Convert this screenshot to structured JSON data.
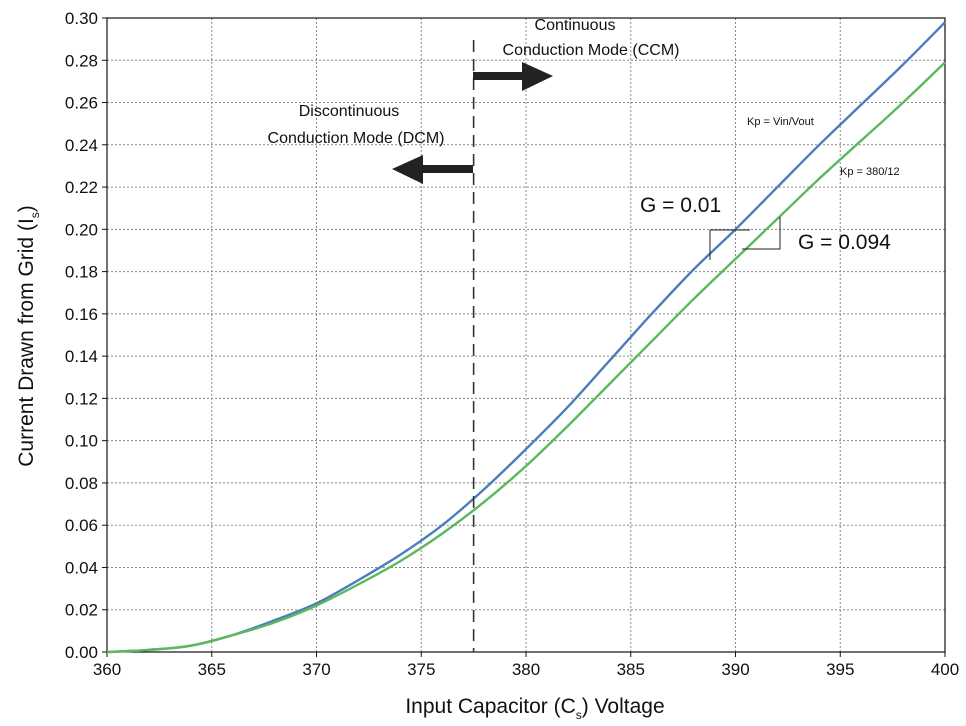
{
  "chart_data": {
    "type": "line",
    "title": "",
    "xlabel": "Input Capacitor (C_s) Voltage",
    "xlabel_parts": {
      "pre": "Input Capacitor (C",
      "sub": "s",
      "post": ") Voltage"
    },
    "ylabel": "Current Drawn from Grid (I_s)",
    "ylabel_parts": {
      "pre": "Current Drawn from Grid (I",
      "sub": "s",
      "post": ")"
    },
    "xlim": [
      360,
      400
    ],
    "ylim": [
      0,
      0.3
    ],
    "grid": true,
    "x_ticks": [
      "360",
      "365",
      "370",
      "375",
      "380",
      "385",
      "390",
      "395",
      "400"
    ],
    "y_ticks": [
      "0.00",
      "0.02",
      "0.04",
      "0.06",
      "0.08",
      "0.10",
      "0.12",
      "0.14",
      "0.16",
      "0.18",
      "0.20",
      "0.22",
      "0.24",
      "0.26",
      "0.28",
      "0.30"
    ],
    "series": [
      {
        "name": "Kp = Vin/Vout",
        "color": "#4a7ebb",
        "x": [
          360,
          362,
          364,
          366,
          368,
          370,
          372,
          374,
          376,
          378,
          380,
          382,
          384,
          386,
          388,
          390,
          392,
          394,
          396,
          398,
          400
        ],
        "y": [
          0.0,
          0.001,
          0.003,
          0.008,
          0.015,
          0.023,
          0.034,
          0.046,
          0.06,
          0.077,
          0.096,
          0.116,
          0.138,
          0.16,
          0.181,
          0.2,
          0.22,
          0.24,
          0.259,
          0.278,
          0.298
        ]
      },
      {
        "name": "Kp = 380/12",
        "color": "#5cb85c",
        "x": [
          360,
          362,
          364,
          366,
          368,
          370,
          372,
          374,
          376,
          378,
          380,
          382,
          384,
          386,
          388,
          390,
          392,
          394,
          396,
          398,
          400
        ],
        "y": [
          0.0,
          0.001,
          0.003,
          0.008,
          0.014,
          0.022,
          0.032,
          0.043,
          0.056,
          0.071,
          0.088,
          0.107,
          0.127,
          0.147,
          0.167,
          0.186,
          0.205,
          0.224,
          0.242,
          0.26,
          0.279
        ]
      }
    ],
    "boundary_x": 377.5,
    "annotations": {
      "ccm_line1": "Continuous",
      "ccm_line2": "Conduction Mode (CCM)",
      "dcm_line1": "Discontinuous",
      "dcm_line2": "Conduction Mode (DCM)",
      "series1_label": "Kp = Vin/Vout",
      "series2_label": "Kp = 380/12",
      "g1": "G = 0.01",
      "g2": "G = 0.094"
    }
  }
}
